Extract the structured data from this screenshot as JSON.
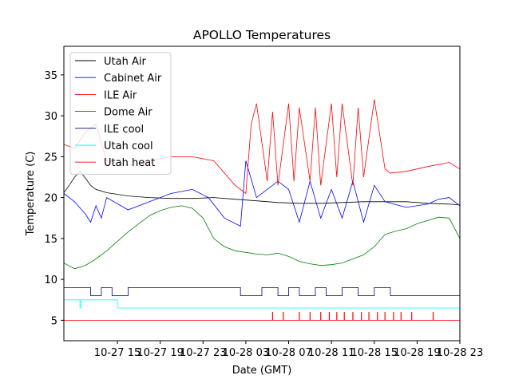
{
  "chart_data": {
    "type": "line",
    "title": "APOLLO Temperatures",
    "xlabel": "Date (GMT)",
    "ylabel": "Temperature (C)",
    "x_unit": "hours since 10-27 00:00 GMT",
    "xlim": [
      10.0,
      47.0
    ],
    "ylim": [
      2.5,
      38.5
    ],
    "grid": false,
    "legend_position": "upper-left",
    "x_ticks": [
      {
        "value": 15,
        "label": "10-27 15"
      },
      {
        "value": 19,
        "label": "10-27 19"
      },
      {
        "value": 23,
        "label": "10-27 23"
      },
      {
        "value": 27,
        "label": "10-28 03"
      },
      {
        "value": 31,
        "label": "10-28 07"
      },
      {
        "value": 35,
        "label": "10-28 11"
      },
      {
        "value": 39,
        "label": "10-28 15"
      },
      {
        "value": 43,
        "label": "10-28 19"
      },
      {
        "value": 47,
        "label": "10-28 23"
      }
    ],
    "y_ticks": [
      {
        "value": 5,
        "label": "5"
      },
      {
        "value": 10,
        "label": "10"
      },
      {
        "value": 15,
        "label": "15"
      },
      {
        "value": 20,
        "label": "20"
      },
      {
        "value": 25,
        "label": "25"
      },
      {
        "value": 30,
        "label": "30"
      },
      {
        "value": 35,
        "label": "35"
      }
    ],
    "series": [
      {
        "name": "Utah Air",
        "color": "#000000",
        "x": [
          10.0,
          10.5,
          11.0,
          11.5,
          12.0,
          12.5,
          13.0,
          14.0,
          15.0,
          16.0,
          18.0,
          20.0,
          22.0,
          24.0,
          26.0,
          28.0,
          30.0,
          32.0,
          34.0,
          36.0,
          38.0,
          40.0,
          42.0,
          44.0,
          46.0,
          47.0
        ],
        "y": [
          20.6,
          21.5,
          22.5,
          23.2,
          22.4,
          21.5,
          21.0,
          20.6,
          20.4,
          20.2,
          20.0,
          19.9,
          19.9,
          20.0,
          19.8,
          19.6,
          19.4,
          19.3,
          19.3,
          19.4,
          19.5,
          19.5,
          19.5,
          19.3,
          19.2,
          19.1
        ]
      },
      {
        "name": "Cabinet Air",
        "color": "#0000ff",
        "x": [
          10.0,
          11.0,
          12.0,
          12.5,
          13.0,
          13.5,
          14.0,
          16.0,
          18.0,
          20.0,
          22.0,
          23.5,
          25.0,
          26.5,
          27.0,
          28.0,
          30.0,
          31.0,
          32.0,
          33.0,
          34.0,
          35.0,
          36.0,
          37.0,
          38.0,
          39.0,
          40.0,
          42.0,
          44.0,
          45.0,
          46.0,
          47.0
        ],
        "y": [
          20.5,
          19.5,
          18.0,
          17.0,
          19.0,
          17.5,
          20.0,
          18.5,
          19.5,
          20.5,
          21.0,
          20.0,
          17.5,
          16.5,
          24.5,
          20.0,
          22.0,
          21.0,
          17.0,
          22.0,
          17.5,
          21.0,
          17.5,
          22.0,
          17.0,
          21.5,
          19.5,
          18.8,
          19.2,
          19.8,
          20.0,
          19.0
        ]
      },
      {
        "name": "ILE Air",
        "color": "#ff0000",
        "x": [
          10.0,
          11.0,
          12.0,
          13.0,
          14.0,
          16.0,
          18.0,
          20.0,
          22.0,
          24.0,
          26.0,
          27.0,
          27.5,
          28.0,
          29.0,
          29.5,
          30.0,
          31.0,
          31.5,
          32.0,
          33.0,
          33.5,
          34.0,
          35.0,
          35.5,
          36.0,
          37.0,
          37.5,
          38.0,
          39.0,
          40.0,
          40.5,
          42.0,
          44.0,
          46.0,
          47.0
        ],
        "y": [
          26.5,
          26.0,
          28.0,
          29.0,
          24.5,
          24.0,
          24.5,
          25.0,
          25.0,
          24.5,
          21.5,
          20.5,
          29.0,
          31.5,
          22.0,
          30.5,
          21.5,
          31.5,
          22.0,
          31.0,
          22.0,
          31.0,
          21.5,
          31.5,
          22.5,
          31.5,
          21.5,
          31.0,
          22.5,
          32.0,
          23.5,
          23.0,
          23.2,
          23.8,
          24.3,
          23.5
        ]
      },
      {
        "name": "Dome Air",
        "color": "#008000",
        "x": [
          10.0,
          11.0,
          12.0,
          13.0,
          14.0,
          16.0,
          18.0,
          19.0,
          20.0,
          21.0,
          22.0,
          23.0,
          24.0,
          25.0,
          26.0,
          27.0,
          28.0,
          29.0,
          30.0,
          31.0,
          32.0,
          33.0,
          34.0,
          35.0,
          36.0,
          37.0,
          38.0,
          39.0,
          40.0,
          41.0,
          42.0,
          43.0,
          44.0,
          45.0,
          46.0,
          47.0
        ],
        "y": [
          12.0,
          11.3,
          11.7,
          12.5,
          13.5,
          15.8,
          17.8,
          18.4,
          18.8,
          19.0,
          18.7,
          17.5,
          15.0,
          14.0,
          13.5,
          13.3,
          13.1,
          13.0,
          13.2,
          12.8,
          12.2,
          11.9,
          11.7,
          11.8,
          12.0,
          12.5,
          13.0,
          14.0,
          15.5,
          15.9,
          16.2,
          16.8,
          17.2,
          17.6,
          17.5,
          15.0
        ]
      },
      {
        "name": "ILE cool",
        "color": "#000080",
        "x": [
          10.0,
          12.5,
          12.5,
          13.5,
          13.5,
          14.5,
          14.5,
          16.0,
          16.0,
          26.5,
          26.5,
          28.5,
          28.5,
          30.0,
          30.0,
          31.0,
          31.0,
          32.0,
          32.0,
          33.5,
          33.5,
          34.5,
          34.5,
          36.0,
          36.0,
          37.5,
          37.5,
          39.0,
          39.0,
          40.5,
          40.5,
          47.0
        ],
        "y": [
          9.0,
          9.0,
          8.0,
          8.0,
          9.0,
          9.0,
          8.0,
          8.0,
          9.0,
          9.0,
          8.0,
          8.0,
          9.0,
          9.0,
          8.0,
          8.0,
          9.0,
          9.0,
          8.0,
          8.0,
          9.0,
          9.0,
          8.0,
          8.0,
          9.0,
          9.0,
          8.0,
          8.0,
          9.0,
          9.0,
          8.0,
          8.0
        ]
      },
      {
        "name": "Utah cool",
        "color": "#00ffff",
        "x": [
          10.0,
          11.5,
          11.5,
          11.6,
          11.6,
          15.0,
          15.0,
          47.0
        ],
        "y": [
          7.5,
          7.5,
          6.5,
          6.5,
          7.5,
          7.5,
          6.5,
          6.5
        ]
      },
      {
        "name": "Utah heat",
        "color": "#ff0000",
        "x": [
          10.0,
          47.0
        ],
        "y": [
          5.0,
          5.0
        ],
        "spikes_x": [
          29.5,
          30.5,
          32.0,
          33.0,
          34.0,
          34.8,
          35.5,
          36.2,
          37.0,
          37.8,
          38.5,
          39.3,
          40.0,
          40.8,
          41.5,
          42.5,
          44.5
        ],
        "spike_top": 6.0
      }
    ]
  }
}
